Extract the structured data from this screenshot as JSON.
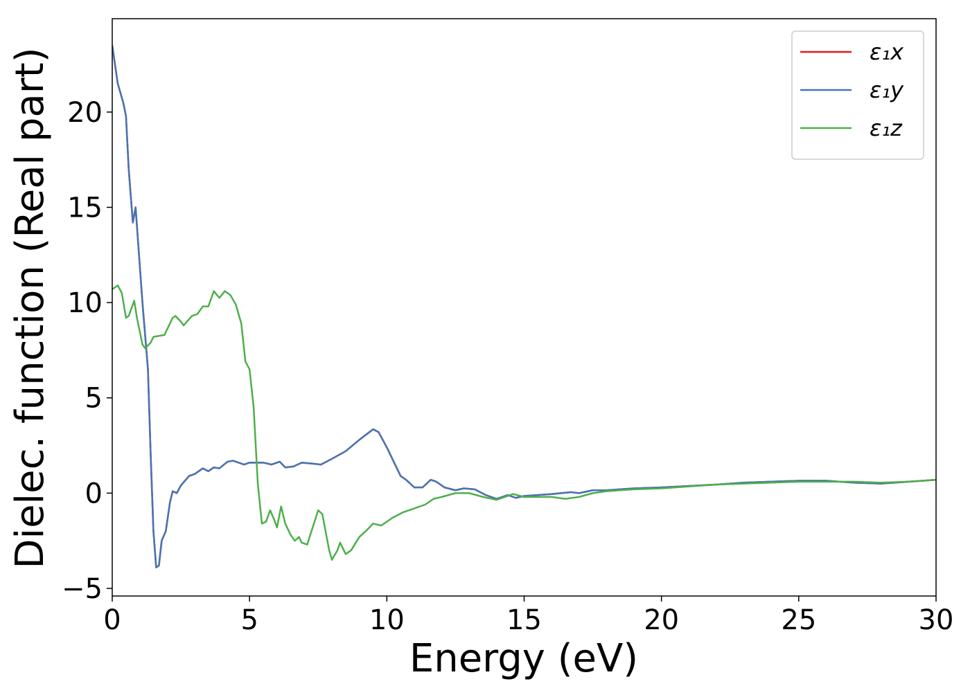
{
  "chart_data": {
    "type": "line",
    "xlabel": "Energy (eV)",
    "ylabel": "Dielec. function (Real part)",
    "xlim": [
      0,
      30
    ],
    "ylim": [
      -5.4,
      24.9
    ],
    "xticks": [
      0,
      5,
      10,
      15,
      20,
      25,
      30
    ],
    "yticks": [
      {
        "value": -5,
        "label": "−5"
      },
      0,
      5,
      10,
      15,
      20
    ],
    "legend": "upper right",
    "series": [
      {
        "name": "ε₁x",
        "color": "#e41a1c",
        "x": [
          0,
          0.2,
          0.4,
          0.5,
          0.6,
          0.75,
          0.85,
          0.95,
          1.1,
          1.3,
          1.4,
          1.5,
          1.6,
          1.7,
          1.8,
          1.95,
          2.1,
          2.2,
          2.35,
          2.5,
          2.8,
          3.0,
          3.3,
          3.5,
          3.7,
          3.9,
          4.2,
          4.4,
          4.8,
          5.0,
          5.5,
          5.8,
          6.1,
          6.3,
          6.6,
          6.9,
          7.3,
          7.6,
          8,
          8.5,
          9,
          9.5,
          9.7,
          10,
          10.2,
          10.5,
          10.7,
          11,
          11.3,
          11.6,
          11.8,
          12.1,
          12.5,
          12.8,
          13.2,
          13.6,
          14,
          14.4,
          14.7,
          15,
          16,
          16.7,
          17,
          17.5,
          18,
          19,
          20,
          22,
          23,
          25,
          26,
          27,
          28,
          29,
          30
        ],
        "values": [
          23.5,
          21.5,
          20.5,
          19.8,
          17,
          14.2,
          15,
          13,
          10,
          6.5,
          2,
          -2,
          -3.9,
          -3.8,
          -2.5,
          -2,
          -0.5,
          0.1,
          0,
          0.4,
          0.9,
          1.0,
          1.3,
          1.15,
          1.35,
          1.3,
          1.65,
          1.7,
          1.5,
          1.6,
          1.6,
          1.5,
          1.65,
          1.35,
          1.4,
          1.6,
          1.55,
          1.5,
          1.8,
          2.2,
          2.8,
          3.35,
          3.2,
          2.4,
          1.8,
          0.9,
          0.7,
          0.3,
          0.3,
          0.7,
          0.6,
          0.3,
          0.15,
          0.25,
          0.2,
          -0.1,
          -0.3,
          -0.1,
          -0.25,
          -0.15,
          -0.05,
          0.05,
          0,
          0.15,
          0.15,
          0.25,
          0.3,
          0.45,
          0.55,
          0.65,
          0.65,
          0.55,
          0.5,
          0.6,
          0.7
        ]
      },
      {
        "name": "ε₁y",
        "color": "#4575b4",
        "x": [
          0,
          0.2,
          0.4,
          0.5,
          0.6,
          0.75,
          0.85,
          0.95,
          1.1,
          1.3,
          1.4,
          1.5,
          1.6,
          1.7,
          1.8,
          1.95,
          2.1,
          2.2,
          2.35,
          2.5,
          2.8,
          3.0,
          3.3,
          3.5,
          3.7,
          3.9,
          4.2,
          4.4,
          4.8,
          5.0,
          5.5,
          5.8,
          6.1,
          6.3,
          6.6,
          6.9,
          7.3,
          7.6,
          8,
          8.5,
          9,
          9.5,
          9.7,
          10,
          10.2,
          10.5,
          10.7,
          11,
          11.3,
          11.6,
          11.8,
          12.1,
          12.5,
          12.8,
          13.2,
          13.6,
          14,
          14.4,
          14.7,
          15,
          16,
          16.7,
          17,
          17.5,
          18,
          19,
          20,
          22,
          23,
          25,
          26,
          27,
          28,
          29,
          30
        ],
        "values": [
          23.5,
          21.5,
          20.5,
          19.8,
          17,
          14.2,
          15,
          13,
          10,
          6.5,
          2,
          -2,
          -3.9,
          -3.8,
          -2.5,
          -2,
          -0.5,
          0.1,
          0,
          0.4,
          0.9,
          1.0,
          1.3,
          1.15,
          1.35,
          1.3,
          1.65,
          1.7,
          1.5,
          1.6,
          1.6,
          1.5,
          1.65,
          1.35,
          1.4,
          1.6,
          1.55,
          1.5,
          1.8,
          2.2,
          2.8,
          3.35,
          3.2,
          2.4,
          1.8,
          0.9,
          0.7,
          0.3,
          0.3,
          0.7,
          0.6,
          0.3,
          0.15,
          0.25,
          0.2,
          -0.1,
          -0.3,
          -0.1,
          -0.25,
          -0.15,
          -0.05,
          0.05,
          0,
          0.15,
          0.15,
          0.25,
          0.3,
          0.45,
          0.55,
          0.65,
          0.65,
          0.55,
          0.5,
          0.6,
          0.7
        ]
      },
      {
        "name": "ε₁z",
        "color": "#4daf4a",
        "x": [
          0,
          0.2,
          0.35,
          0.5,
          0.6,
          0.8,
          0.9,
          1.1,
          1.2,
          1.4,
          1.5,
          1.9,
          2.2,
          2.3,
          2.5,
          2.6,
          2.9,
          3.1,
          3.3,
          3.5,
          3.7,
          3.9,
          4.1,
          4.3,
          4.5,
          4.7,
          4.85,
          5.0,
          5.15,
          5.3,
          5.45,
          5.6,
          5.75,
          5.9,
          6.0,
          6.15,
          6.3,
          6.5,
          6.65,
          6.8,
          6.9,
          7.1,
          7.3,
          7.5,
          7.65,
          7.9,
          8.0,
          8.2,
          8.3,
          8.5,
          8.7,
          9.0,
          9.3,
          9.5,
          9.8,
          10.2,
          10.6,
          11,
          11.4,
          11.7,
          12,
          12.5,
          13,
          13.5,
          14,
          14.3,
          14.6,
          15,
          15.5,
          16,
          16.5,
          17,
          17.5,
          18,
          19,
          20,
          22,
          25,
          26,
          27,
          28,
          29,
          30
        ],
        "values": [
          10.7,
          10.9,
          10.5,
          9.2,
          9.3,
          10.1,
          9.2,
          7.8,
          7.6,
          7.9,
          8.2,
          8.3,
          9.2,
          9.3,
          9.0,
          8.8,
          9.3,
          9.4,
          9.8,
          9.8,
          10.6,
          10.25,
          10.6,
          10.4,
          9.9,
          8.9,
          6.9,
          6.5,
          4.5,
          0.5,
          -1.6,
          -1.5,
          -0.9,
          -1.4,
          -1.8,
          -0.7,
          -1.6,
          -2.2,
          -2.5,
          -2.3,
          -2.6,
          -2.7,
          -1.8,
          -0.9,
          -1.1,
          -3.0,
          -3.5,
          -3.0,
          -2.6,
          -3.2,
          -3.0,
          -2.3,
          -1.9,
          -1.6,
          -1.7,
          -1.3,
          -1.0,
          -0.8,
          -0.6,
          -0.3,
          -0.2,
          0,
          0,
          -0.2,
          -0.35,
          -0.2,
          -0.05,
          -0.2,
          -0.2,
          -0.2,
          -0.3,
          -0.2,
          0,
          0.1,
          0.2,
          0.25,
          0.45,
          0.6,
          0.6,
          0.6,
          0.55,
          0.6,
          0.7
        ]
      }
    ]
  }
}
